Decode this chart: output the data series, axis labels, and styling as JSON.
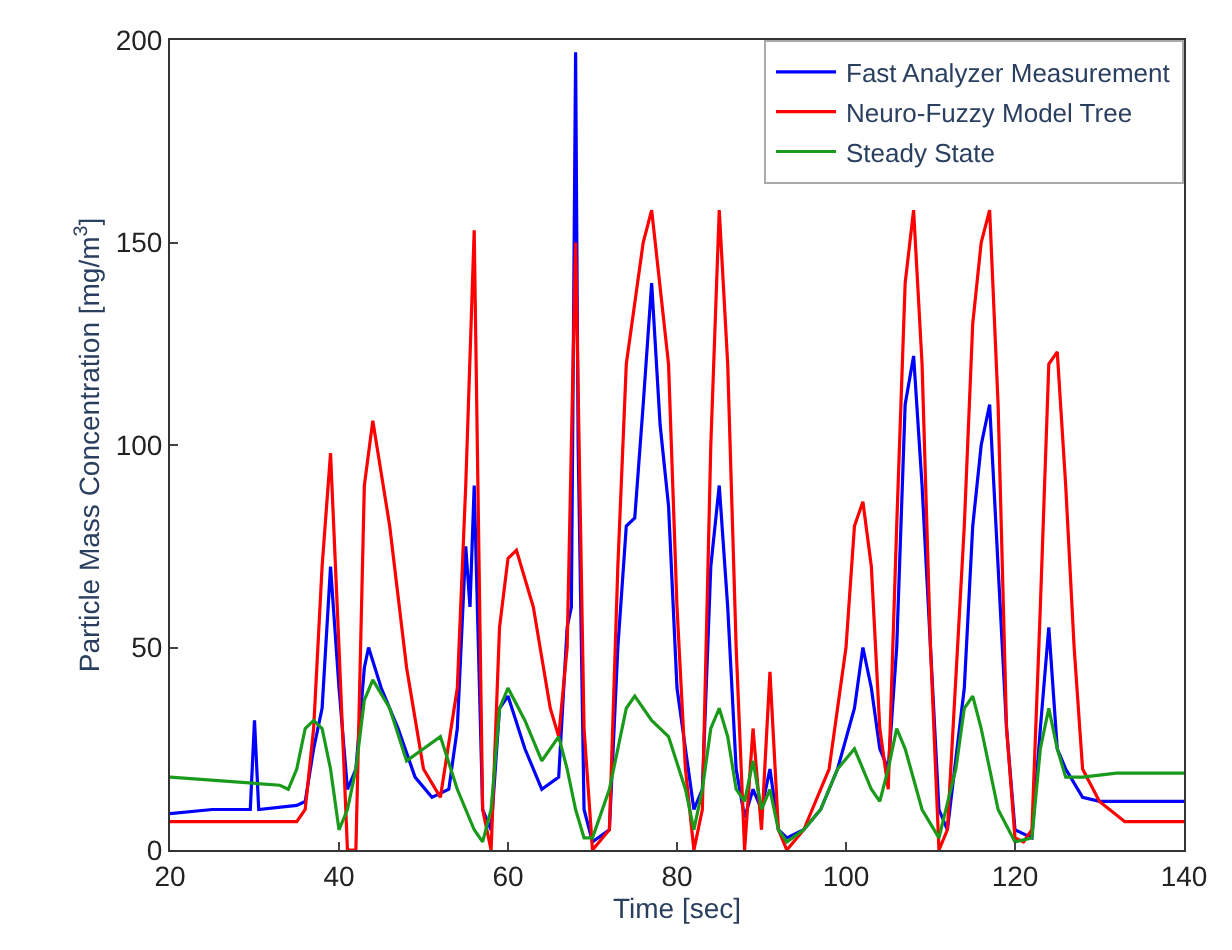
{
  "chart_data": {
    "type": "line",
    "xlabel": "Time [sec]",
    "ylabel": "Particle Mass Concentration [mg/m$^{3}$]",
    "xlim": [
      20,
      140
    ],
    "ylim": [
      0,
      200
    ],
    "xticks": [
      20,
      40,
      60,
      80,
      100,
      120,
      140
    ],
    "yticks": [
      0,
      50,
      100,
      150,
      200
    ],
    "legend": "top right",
    "series": [
      {
        "name": "Fast Analyzer Measurement",
        "color": "#0000ff",
        "x": [
          20,
          25,
          29.5,
          30,
          30.5,
          35,
          36,
          37,
          38,
          39,
          40,
          41,
          42,
          43,
          43.5,
          45,
          47,
          49,
          51,
          53,
          54,
          55,
          55.5,
          56,
          57,
          58,
          59,
          60,
          62,
          64,
          66,
          67,
          67.5,
          68,
          68.3,
          69,
          70,
          72,
          73,
          74,
          75,
          76,
          77,
          78,
          79,
          80,
          81,
          82,
          83,
          84,
          85,
          86,
          87,
          88,
          89,
          90,
          91,
          92,
          93,
          95,
          97,
          99,
          101,
          102,
          103,
          104,
          105,
          106,
          107,
          108,
          109,
          110,
          111,
          112,
          114,
          115,
          116,
          117,
          118,
          119,
          120,
          122,
          123,
          124,
          125,
          126,
          128,
          130,
          135,
          140
        ],
        "values": [
          9,
          10,
          10,
          32,
          10,
          11,
          12,
          25,
          35,
          70,
          40,
          15,
          20,
          45,
          50,
          40,
          30,
          18,
          13,
          15,
          30,
          75,
          60,
          90,
          10,
          5,
          35,
          38,
          25,
          15,
          18,
          55,
          60,
          197,
          100,
          10,
          2,
          5,
          50,
          80,
          82,
          110,
          140,
          105,
          85,
          40,
          25,
          10,
          15,
          70,
          90,
          60,
          20,
          8,
          15,
          10,
          20,
          5,
          3,
          5,
          10,
          20,
          35,
          50,
          40,
          25,
          20,
          50,
          110,
          122,
          90,
          50,
          10,
          5,
          40,
          80,
          100,
          110,
          70,
          30,
          5,
          3,
          30,
          55,
          25,
          20,
          13,
          12,
          12,
          12
        ]
      },
      {
        "name": "Neuro-Fuzzy Model Tree",
        "color": "#ff0000",
        "x": [
          20,
          35,
          36,
          37,
          38,
          39,
          40,
          41,
          42,
          43,
          44,
          46,
          48,
          50,
          52,
          54,
          55,
          56,
          57,
          58,
          59,
          60,
          61,
          63,
          65,
          66,
          67,
          68,
          69,
          70,
          72,
          73,
          74,
          76,
          77,
          79,
          80,
          81,
          82,
          83,
          84,
          85,
          86,
          87,
          88,
          89,
          90,
          91,
          92,
          93,
          95,
          98,
          100,
          101,
          102,
          103,
          104,
          105,
          106,
          107,
          108,
          109,
          110,
          111,
          112,
          114,
          115,
          116,
          117,
          118,
          119,
          120,
          121,
          122,
          123,
          124,
          125,
          126,
          127,
          128,
          130,
          133,
          140
        ],
        "values": [
          7,
          7,
          10,
          30,
          70,
          98,
          50,
          0,
          0,
          90,
          106,
          80,
          45,
          20,
          13,
          40,
          90,
          153,
          10,
          0,
          55,
          72,
          74,
          60,
          35,
          28,
          50,
          150,
          30,
          0,
          5,
          70,
          120,
          150,
          158,
          120,
          60,
          20,
          0,
          10,
          100,
          158,
          120,
          50,
          0,
          30,
          5,
          44,
          5,
          0,
          5,
          20,
          50,
          80,
          86,
          70,
          30,
          15,
          80,
          140,
          158,
          120,
          50,
          0,
          5,
          80,
          130,
          150,
          158,
          110,
          30,
          3,
          2,
          5,
          60,
          120,
          123,
          90,
          50,
          20,
          12,
          7,
          7
        ]
      },
      {
        "name": "Steady State",
        "color": "#1a9a1a",
        "x": [
          20,
          33,
          34,
          35,
          36,
          37,
          38,
          39,
          40,
          41,
          42,
          43,
          44,
          46,
          48,
          50,
          52,
          54,
          56,
          57,
          58,
          59,
          60,
          62,
          64,
          66,
          67,
          68,
          69,
          70,
          72,
          74,
          75,
          77,
          79,
          81,
          82,
          83,
          84,
          85,
          86,
          87,
          88,
          89,
          90,
          91,
          92,
          93,
          95,
          97,
          99,
          101,
          103,
          104,
          105,
          106,
          107,
          109,
          111,
          113,
          114,
          115,
          116,
          118,
          120,
          122,
          123,
          124,
          125,
          126,
          128,
          132,
          140
        ],
        "values": [
          18,
          16,
          15,
          20,
          30,
          32,
          30,
          20,
          5,
          10,
          20,
          37,
          42,
          35,
          22,
          25,
          28,
          15,
          5,
          2,
          10,
          35,
          40,
          32,
          22,
          28,
          20,
          10,
          3,
          3,
          15,
          35,
          38,
          32,
          28,
          15,
          5,
          15,
          30,
          35,
          28,
          15,
          12,
          22,
          10,
          15,
          5,
          2,
          5,
          10,
          20,
          25,
          15,
          12,
          20,
          30,
          25,
          10,
          3,
          20,
          35,
          38,
          30,
          10,
          2,
          3,
          25,
          35,
          25,
          18,
          18,
          19,
          19
        ]
      }
    ]
  }
}
